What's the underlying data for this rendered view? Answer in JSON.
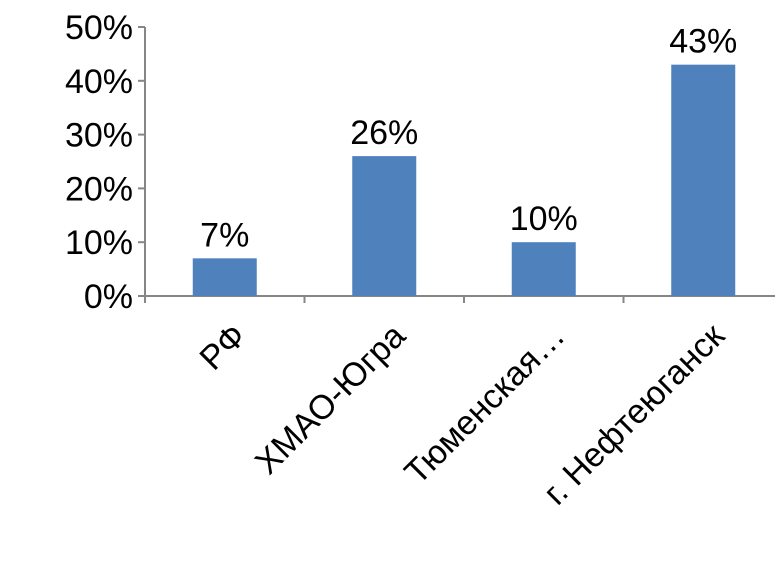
{
  "chart_data": {
    "type": "bar",
    "categories": [
      "РФ",
      "ХМАО-Югра",
      "Тюменская…",
      "г. Нефтеюганск"
    ],
    "values": [
      7,
      26,
      10,
      43
    ],
    "data_labels": [
      "7%",
      "26%",
      "10%",
      "43%"
    ],
    "ylim": [
      0,
      50
    ],
    "yticks": [
      0,
      10,
      20,
      30,
      40,
      50
    ],
    "ytick_labels": [
      "0%",
      "10%",
      "20%",
      "30%",
      "40%",
      "50%"
    ],
    "grid": false,
    "legend": "none",
    "bar_color": "#4f81bd",
    "axis_color": "#868686"
  }
}
